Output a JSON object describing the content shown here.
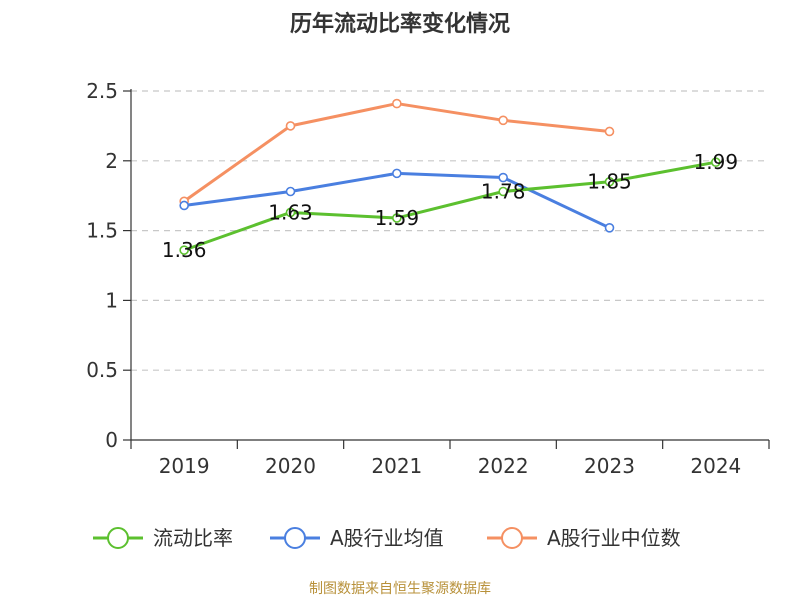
{
  "chart_data": {
    "type": "line",
    "title": "历年流动比率变化情况",
    "categories": [
      "2019",
      "2020",
      "2021",
      "2022",
      "2023",
      "2024"
    ],
    "ylim": [
      0,
      2.5
    ],
    "yticks": [
      "0",
      "0.5",
      "1",
      "1.5",
      "2",
      "2.5"
    ],
    "grid": true,
    "legend_position": "bottom",
    "series": [
      {
        "name": "流动比率",
        "color": "#5cc02f",
        "values": [
          1.36,
          1.63,
          1.59,
          1.78,
          1.85,
          1.99
        ],
        "labels": [
          "1.36",
          "1.63",
          "1.59",
          "1.78",
          "1.85",
          "1.99"
        ]
      },
      {
        "name": "A股行业均值",
        "color": "#4a7fe0",
        "values": [
          1.68,
          1.78,
          1.91,
          1.88,
          1.52,
          null
        ]
      },
      {
        "name": "A股行业中位数",
        "color": "#f59062",
        "values": [
          1.71,
          2.25,
          2.41,
          2.29,
          2.21,
          null
        ]
      }
    ]
  },
  "footer": {
    "source": "制图数据来自恒生聚源数据库"
  }
}
